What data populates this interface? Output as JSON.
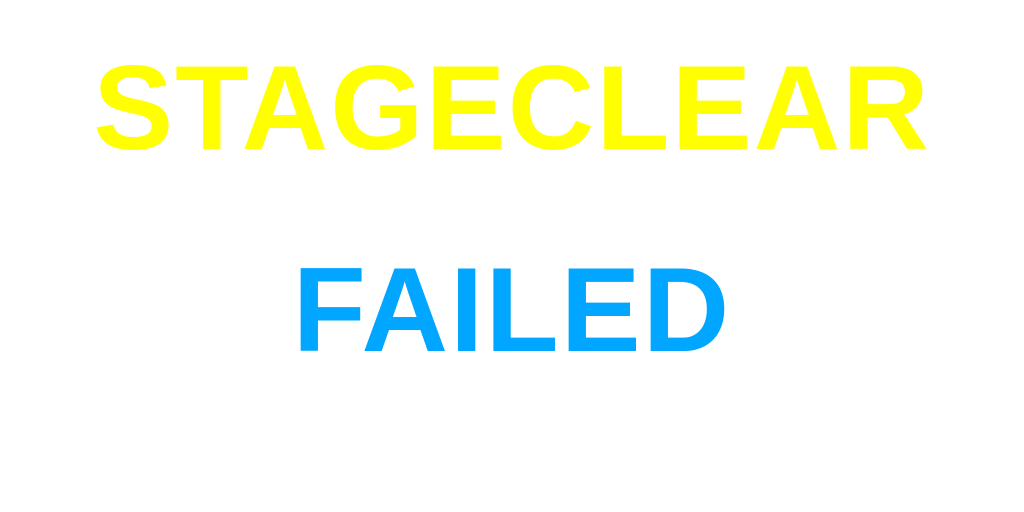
{
  "result_screen": {
    "title": "STAGECLEAR",
    "status": "FAILED"
  },
  "colors": {
    "title": "#ffff00",
    "status": "#00a6ff",
    "background": "#ffffff"
  }
}
